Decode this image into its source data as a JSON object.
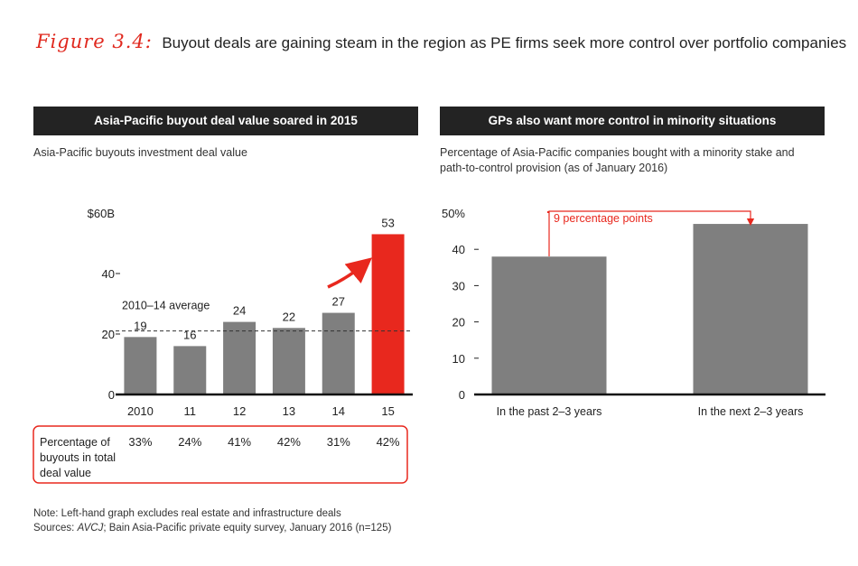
{
  "title": {
    "label": "Figure 3.4:",
    "text": "Buyout deals are gaining steam in the region as PE firms seek more control over portfolio companies"
  },
  "colors": {
    "accent": "#e8281e",
    "bar_gray": "#7f7f7f",
    "header_bg": "#232323"
  },
  "left_panel": {
    "header": "Asia-Pacific buyout deal value soared in 2015",
    "subtitle": "Asia-Pacific buyouts investment deal value",
    "average_label": "2010–14 average",
    "table_label": [
      "Percentage of",
      "buyouts in total",
      "deal value"
    ],
    "percentages": [
      "33%",
      "24%",
      "41%",
      "42%",
      "31%",
      "42%"
    ]
  },
  "right_panel": {
    "header": "GPs also want more control in minority situations",
    "subtitle": [
      "Percentage of Asia-Pacific companies bought with a minority stake and",
      "path-to-control provision (as of January 2016)"
    ],
    "annotation": "9 percentage points"
  },
  "chart_data": [
    {
      "type": "bar",
      "title": "Asia-Pacific buyouts investment deal value",
      "categories": [
        "2010",
        "11",
        "12",
        "13",
        "14",
        "15"
      ],
      "values": [
        19,
        16,
        24,
        22,
        27,
        53
      ],
      "data_labels": [
        "19",
        "16",
        "24",
        "22",
        "27",
        "53"
      ],
      "highlight_index": 5,
      "yticks": [
        0,
        20,
        40,
        60
      ],
      "ytick_labels": [
        "0",
        "20",
        "40",
        "$60B"
      ],
      "ylim": [
        0,
        60
      ],
      "average_line": 21,
      "grid": false
    },
    {
      "type": "bar",
      "title": "Percentage of Asia-Pacific companies bought with a minority stake and path-to-control provision",
      "categories": [
        "In the past 2–3 years",
        "In the next 2–3 years"
      ],
      "values": [
        38,
        47
      ],
      "yticks": [
        0,
        10,
        20,
        30,
        40,
        50
      ],
      "ytick_labels": [
        "0",
        "10",
        "20",
        "30",
        "40",
        "50%"
      ],
      "ylim": [
        0,
        50
      ],
      "grid": false
    }
  ],
  "footer": {
    "note": "Note: Left-hand graph excludes real estate and infrastructure deals",
    "sources_prefix": "Sources: ",
    "sources_italic": "AVCJ",
    "sources_rest": "; Bain Asia-Pacific private equity survey, January 2016 (n=125)"
  }
}
